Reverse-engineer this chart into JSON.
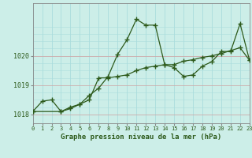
{
  "title": "Graphe pression niveau de la mer (hPa)",
  "background_color": "#cceee8",
  "grid_color_v": "#aadddd",
  "grid_color_h": "#ccaaaa",
  "line_color": "#2d5a1b",
  "x_min": 0,
  "x_max": 23,
  "y_min": 1017.7,
  "y_max": 1021.8,
  "yticks": [
    1018,
    1019,
    1020
  ],
  "xtick_labels": [
    "0",
    "1",
    "2",
    "3",
    "4",
    "5",
    "6",
    "7",
    "8",
    "9",
    "10",
    "11",
    "12",
    "13",
    "14",
    "15",
    "16",
    "17",
    "18",
    "19",
    "20",
    "21",
    "22",
    "23"
  ],
  "series1_x": [
    0,
    1,
    2,
    3,
    4,
    5,
    6,
    7,
    8,
    9,
    10,
    11,
    12,
    13,
    14,
    15,
    16,
    17,
    18,
    19,
    20,
    21,
    22,
    23
  ],
  "series1_y": [
    1018.1,
    1018.45,
    1018.5,
    1018.1,
    1018.2,
    1018.35,
    1018.65,
    1018.9,
    1019.3,
    1020.05,
    1020.55,
    1021.25,
    1021.05,
    1021.05,
    1019.7,
    1019.6,
    1019.3,
    1019.35,
    1019.65,
    1019.8,
    1020.15,
    1020.15,
    1021.1,
    1019.85
  ],
  "series2_x": [
    0,
    3,
    4,
    5,
    6,
    7,
    8,
    9,
    10,
    11,
    12,
    13,
    14,
    15,
    16,
    17,
    18,
    19,
    20,
    21,
    22,
    23
  ],
  "series2_y": [
    1018.1,
    1018.1,
    1018.25,
    1018.35,
    1018.5,
    1019.25,
    1019.25,
    1019.3,
    1019.35,
    1019.5,
    1019.6,
    1019.65,
    1019.7,
    1019.7,
    1019.82,
    1019.87,
    1019.95,
    1020.0,
    1020.08,
    1020.18,
    1020.28,
    1019.85
  ]
}
